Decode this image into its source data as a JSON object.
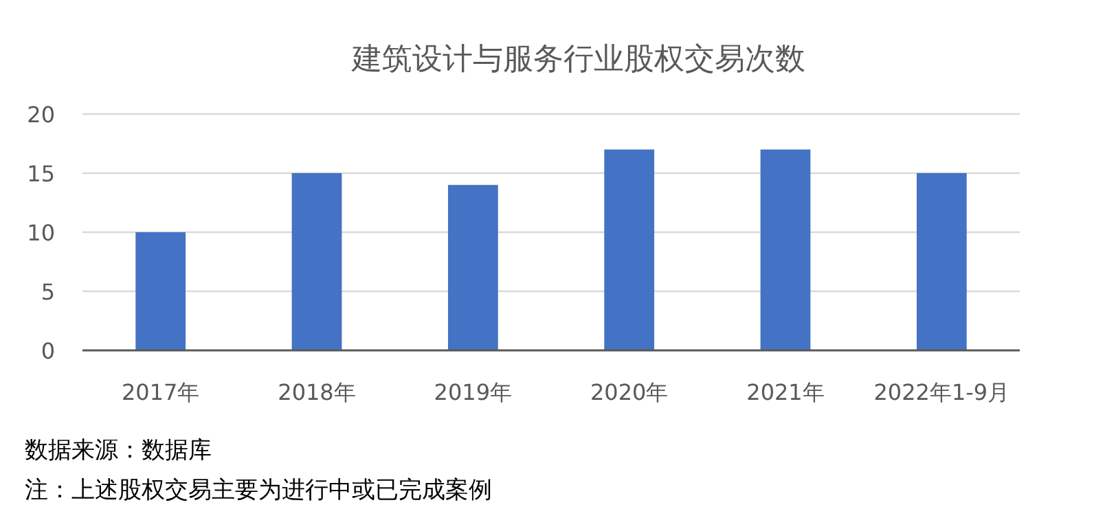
{
  "chart_data": {
    "type": "bar",
    "title": "建筑设计与服务行业股权交易次数",
    "categories": [
      "2017年",
      "2018年",
      "2019年",
      "2020年",
      "2021年",
      "2022年1-9月"
    ],
    "values": [
      10,
      15,
      14,
      17,
      17,
      15
    ],
    "color": "#4472c4",
    "ylim": [
      0,
      20
    ],
    "yticks": [
      0,
      5,
      10,
      15,
      20
    ],
    "grid": "y",
    "annotations": [
      "数据来源：数据库",
      "注：上述股权交易主要为进行中或已完成案例"
    ]
  }
}
